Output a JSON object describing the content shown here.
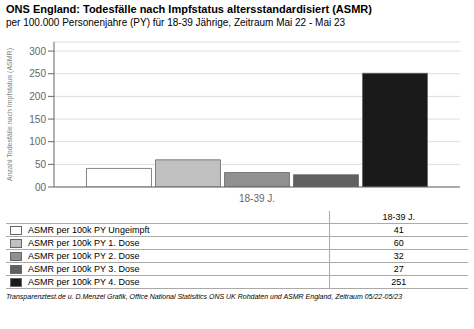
{
  "chart_data": {
    "type": "bar",
    "title": "ONS England: Todesfälle nach Impfstatus altersstandardisiert (ASMR)",
    "subtitle": "per 100.000 Personenjahre (PY) für 18-39 Jährige, Zeitraum Mai 22 - Mai 23",
    "y_label": "Anzahl Todesfälle nach Impfstatus (ASMR)",
    "footer": "Transparenztest.de u. D.Menzel Grafik, Office National Statisitics ONS UK Rohdaten und ASMR England, Zeitraum 05/22-05/23",
    "categories": [
      "18-39 J."
    ],
    "series": [
      {
        "name": "ASMR per 100k PY Ungeimpft",
        "color": "#ffffff",
        "values": [
          41
        ]
      },
      {
        "name": "ASMR per 100k PY 1. Dose",
        "color": "#c0c0c0",
        "values": [
          60
        ]
      },
      {
        "name": "ASMR per 100k PY 2. Dose",
        "color": "#909090",
        "values": [
          32
        ]
      },
      {
        "name": "ASMR per 100k PY 3. Dose",
        "color": "#606060",
        "values": [
          27
        ]
      },
      {
        "name": "ASMR per 100k PY 4. Dose",
        "color": "#1a1a1a",
        "values": [
          251
        ]
      }
    ],
    "ylim": [
      0,
      320
    ],
    "yticks": [
      {
        "value": 0,
        "label": "00"
      },
      50,
      100,
      150,
      200,
      250,
      300
    ],
    "grid": true,
    "legend": "bottom"
  }
}
